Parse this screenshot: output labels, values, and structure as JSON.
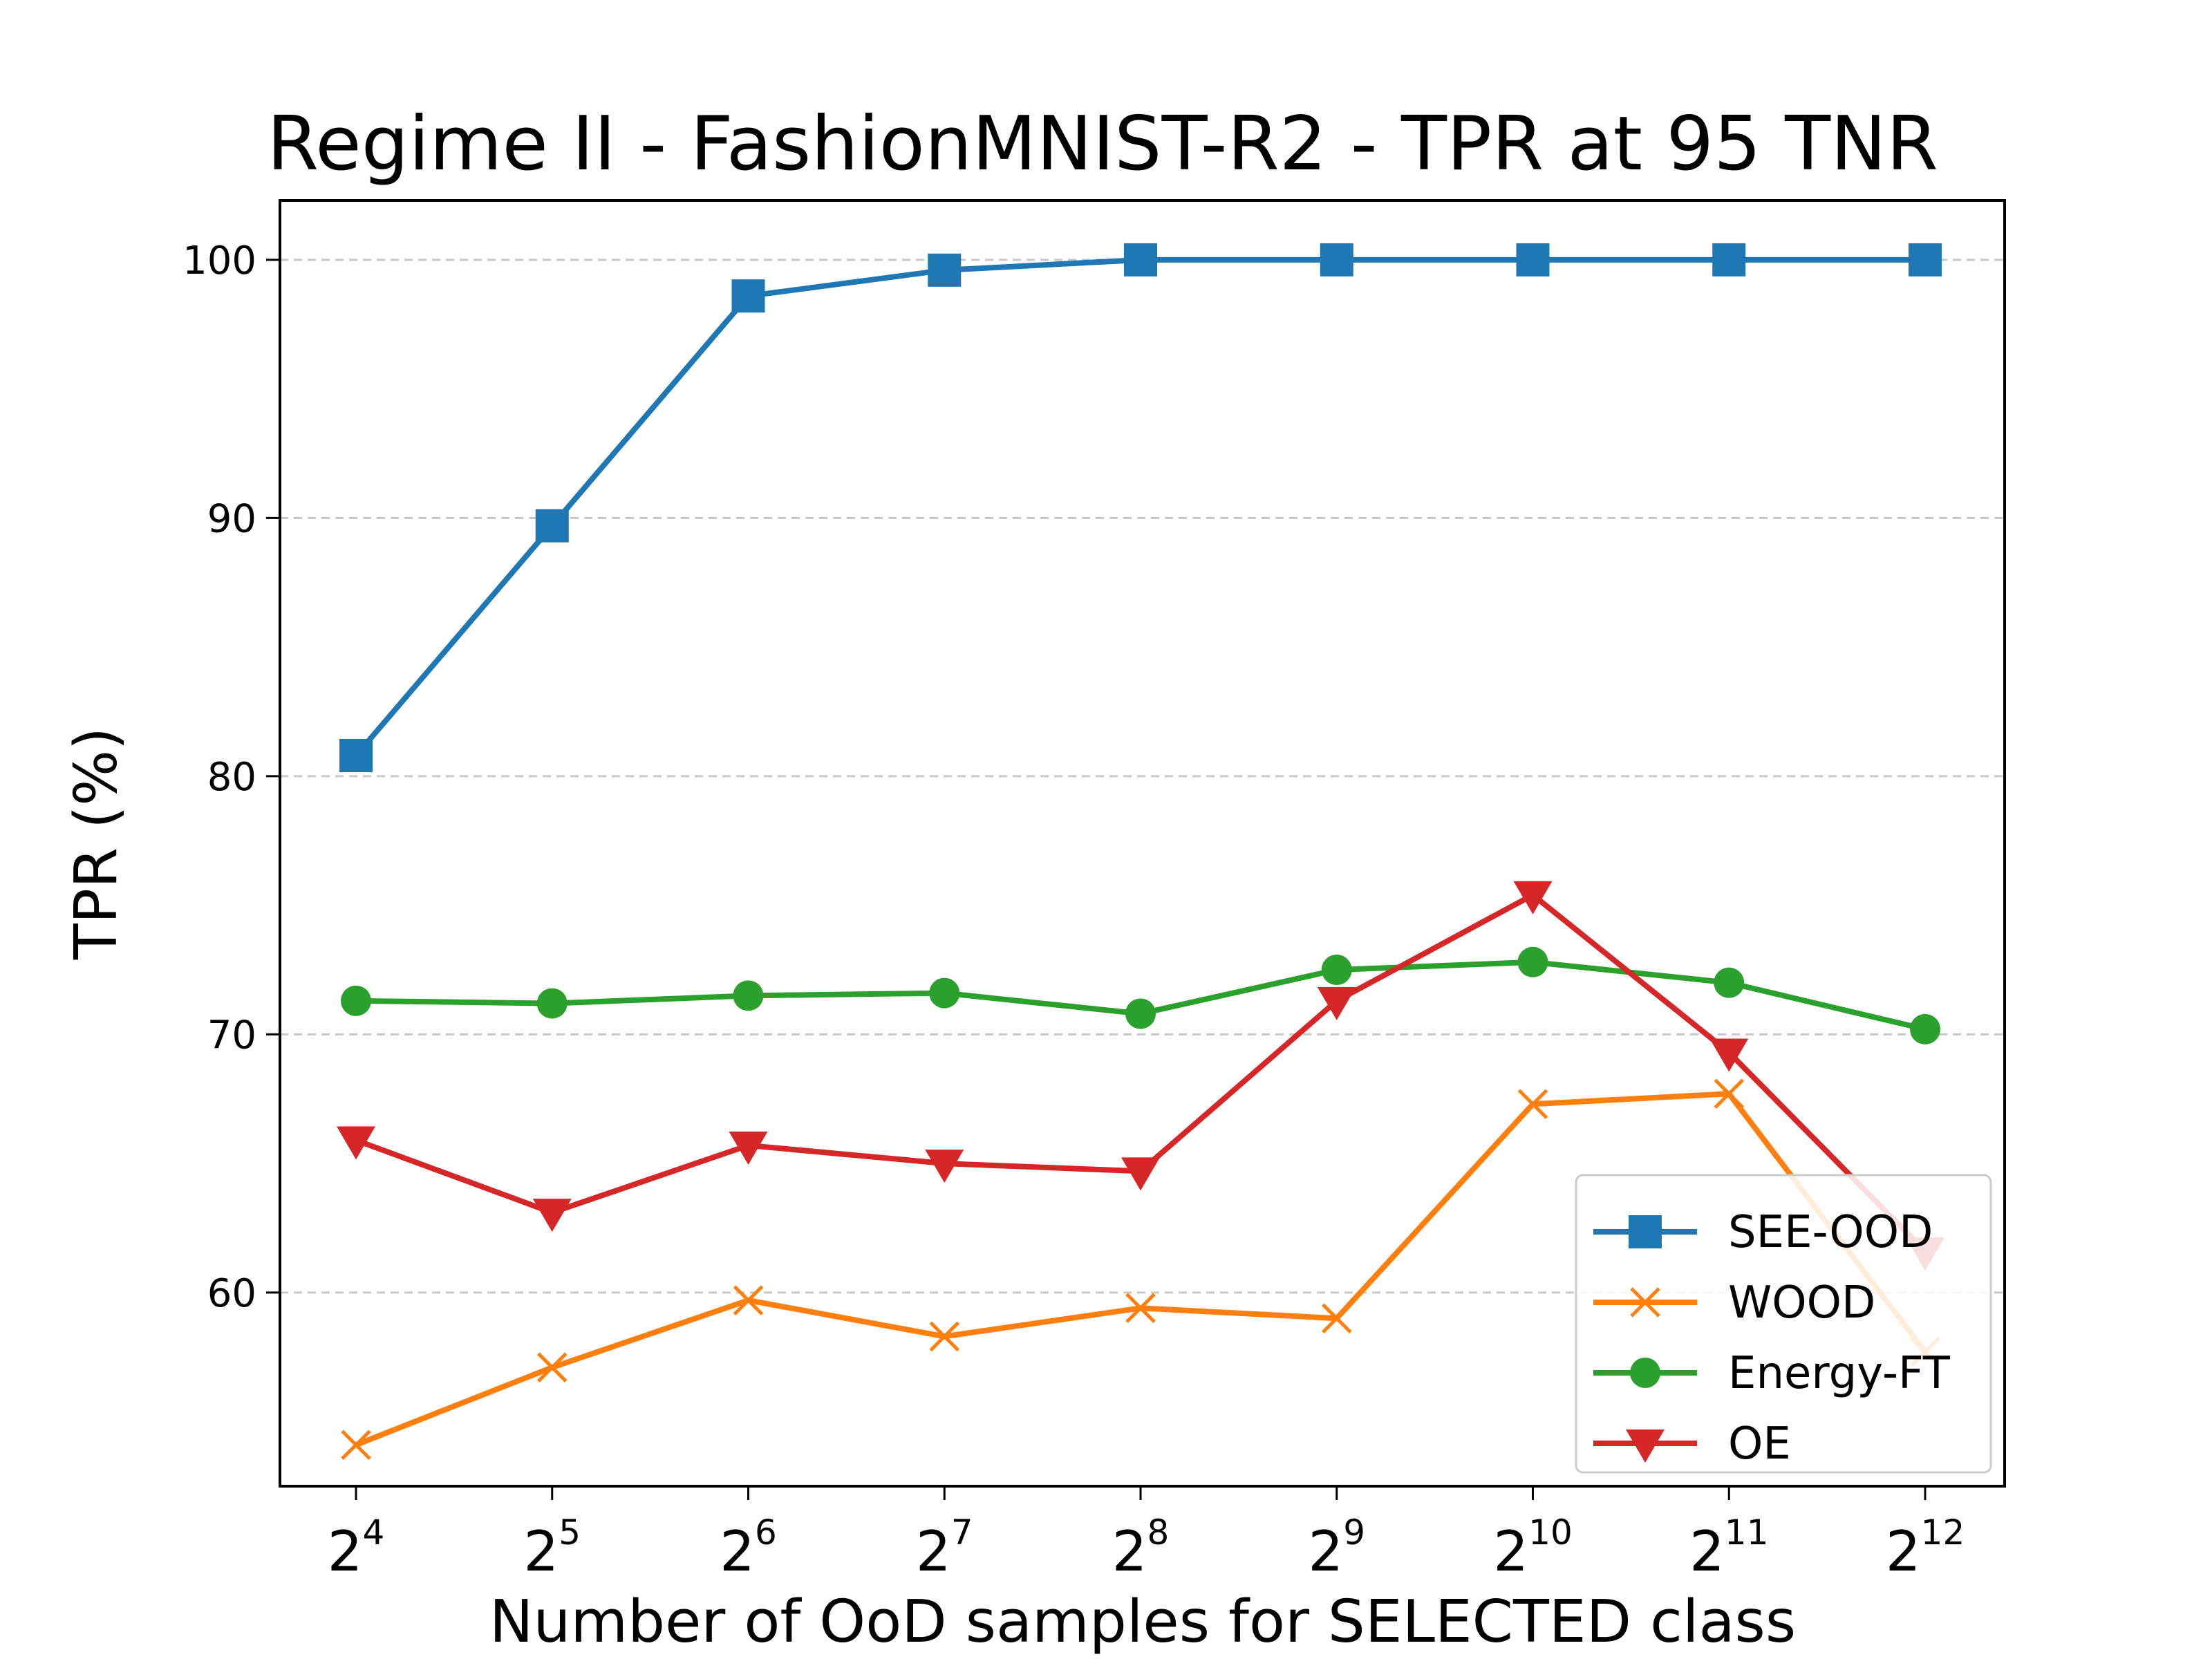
{
  "chart_data": {
    "type": "line",
    "title": "Regime II - FashionMNIST-R2 - TPR at 95 TNR",
    "xlabel": "Number of OoD samples for SELECTED class",
    "ylabel": "TPR (%)",
    "x_base": "2",
    "x": [
      4,
      5,
      6,
      7,
      8,
      9,
      10,
      11,
      12
    ],
    "ylim": [
      52.5,
      102.3
    ],
    "yticks": [
      60,
      70,
      80,
      90,
      100
    ],
    "grid": "y dashed",
    "legend_position": "lower right",
    "series": [
      {
        "name": "SEE-OOD",
        "color": "#1f77b4",
        "marker": "square",
        "values": [
          80.8,
          89.7,
          98.6,
          99.6,
          100.0,
          100.0,
          100.0,
          100.0,
          100.0
        ]
      },
      {
        "name": "WOOD",
        "color": "#ff7f0e",
        "marker": "x",
        "values": [
          54.1,
          57.1,
          59.7,
          58.3,
          59.4,
          59.0,
          67.3,
          67.7,
          57.7
        ]
      },
      {
        "name": "Energy-FT",
        "color": "#2ca02c",
        "marker": "circle",
        "values": [
          71.3,
          71.2,
          71.5,
          71.6,
          70.8,
          72.5,
          72.8,
          72.0,
          70.2
        ]
      },
      {
        "name": "OE",
        "color": "#d62728",
        "marker": "triangle-down",
        "values": [
          65.9,
          63.1,
          65.7,
          65.0,
          64.7,
          71.3,
          75.4,
          69.3,
          61.6
        ]
      }
    ]
  }
}
